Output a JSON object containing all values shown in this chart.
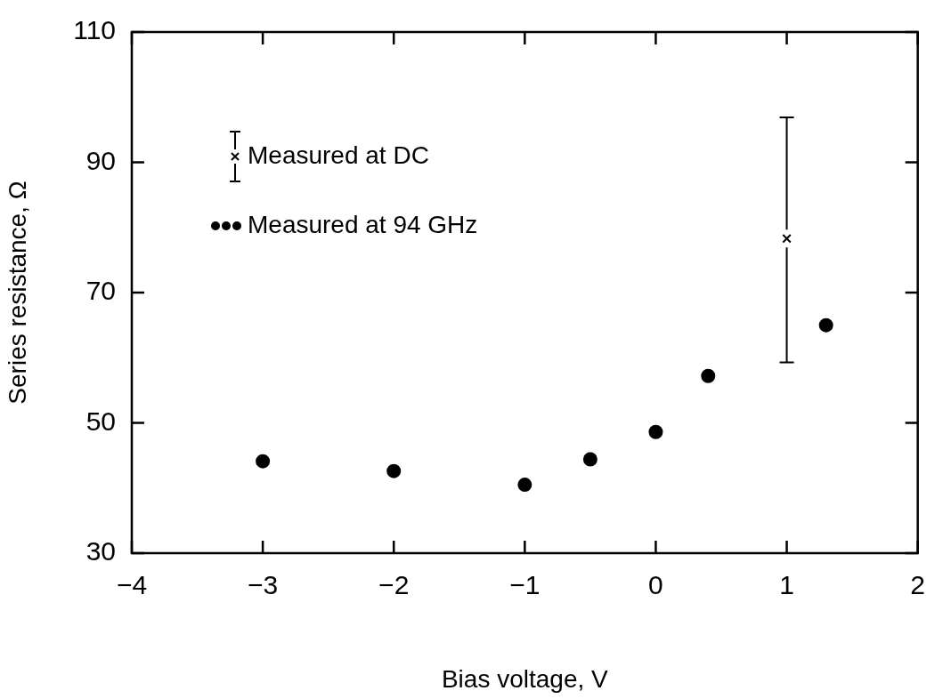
{
  "chart_data": {
    "type": "scatter",
    "xlabel": "Bias voltage, V",
    "ylabel": "Series resistance, Ω",
    "xlim": [
      -4,
      2
    ],
    "xticks": [
      -4,
      -3,
      -2,
      -1,
      0,
      1,
      2
    ],
    "ylim": [
      30,
      110
    ],
    "yticks": [
      30,
      50,
      70,
      90,
      110
    ],
    "grid": false,
    "legend": "top left",
    "series": [
      {
        "name": "Measured at DC",
        "color": "#000000",
        "marker": "cross",
        "x": [
          1
        ],
        "values": [
          78.3
        ],
        "errors": [
          [
            59.3,
            96.9
          ]
        ]
      },
      {
        "name": "Measured at 94 GHz",
        "color": "#000000",
        "marker": "circle",
        "x": [
          -3,
          -2,
          -1,
          -0.5,
          0,
          0.4,
          1.3
        ],
        "values": [
          44.1,
          42.6,
          40.5,
          44.4,
          48.6,
          57.2,
          65.0
        ]
      }
    ]
  }
}
